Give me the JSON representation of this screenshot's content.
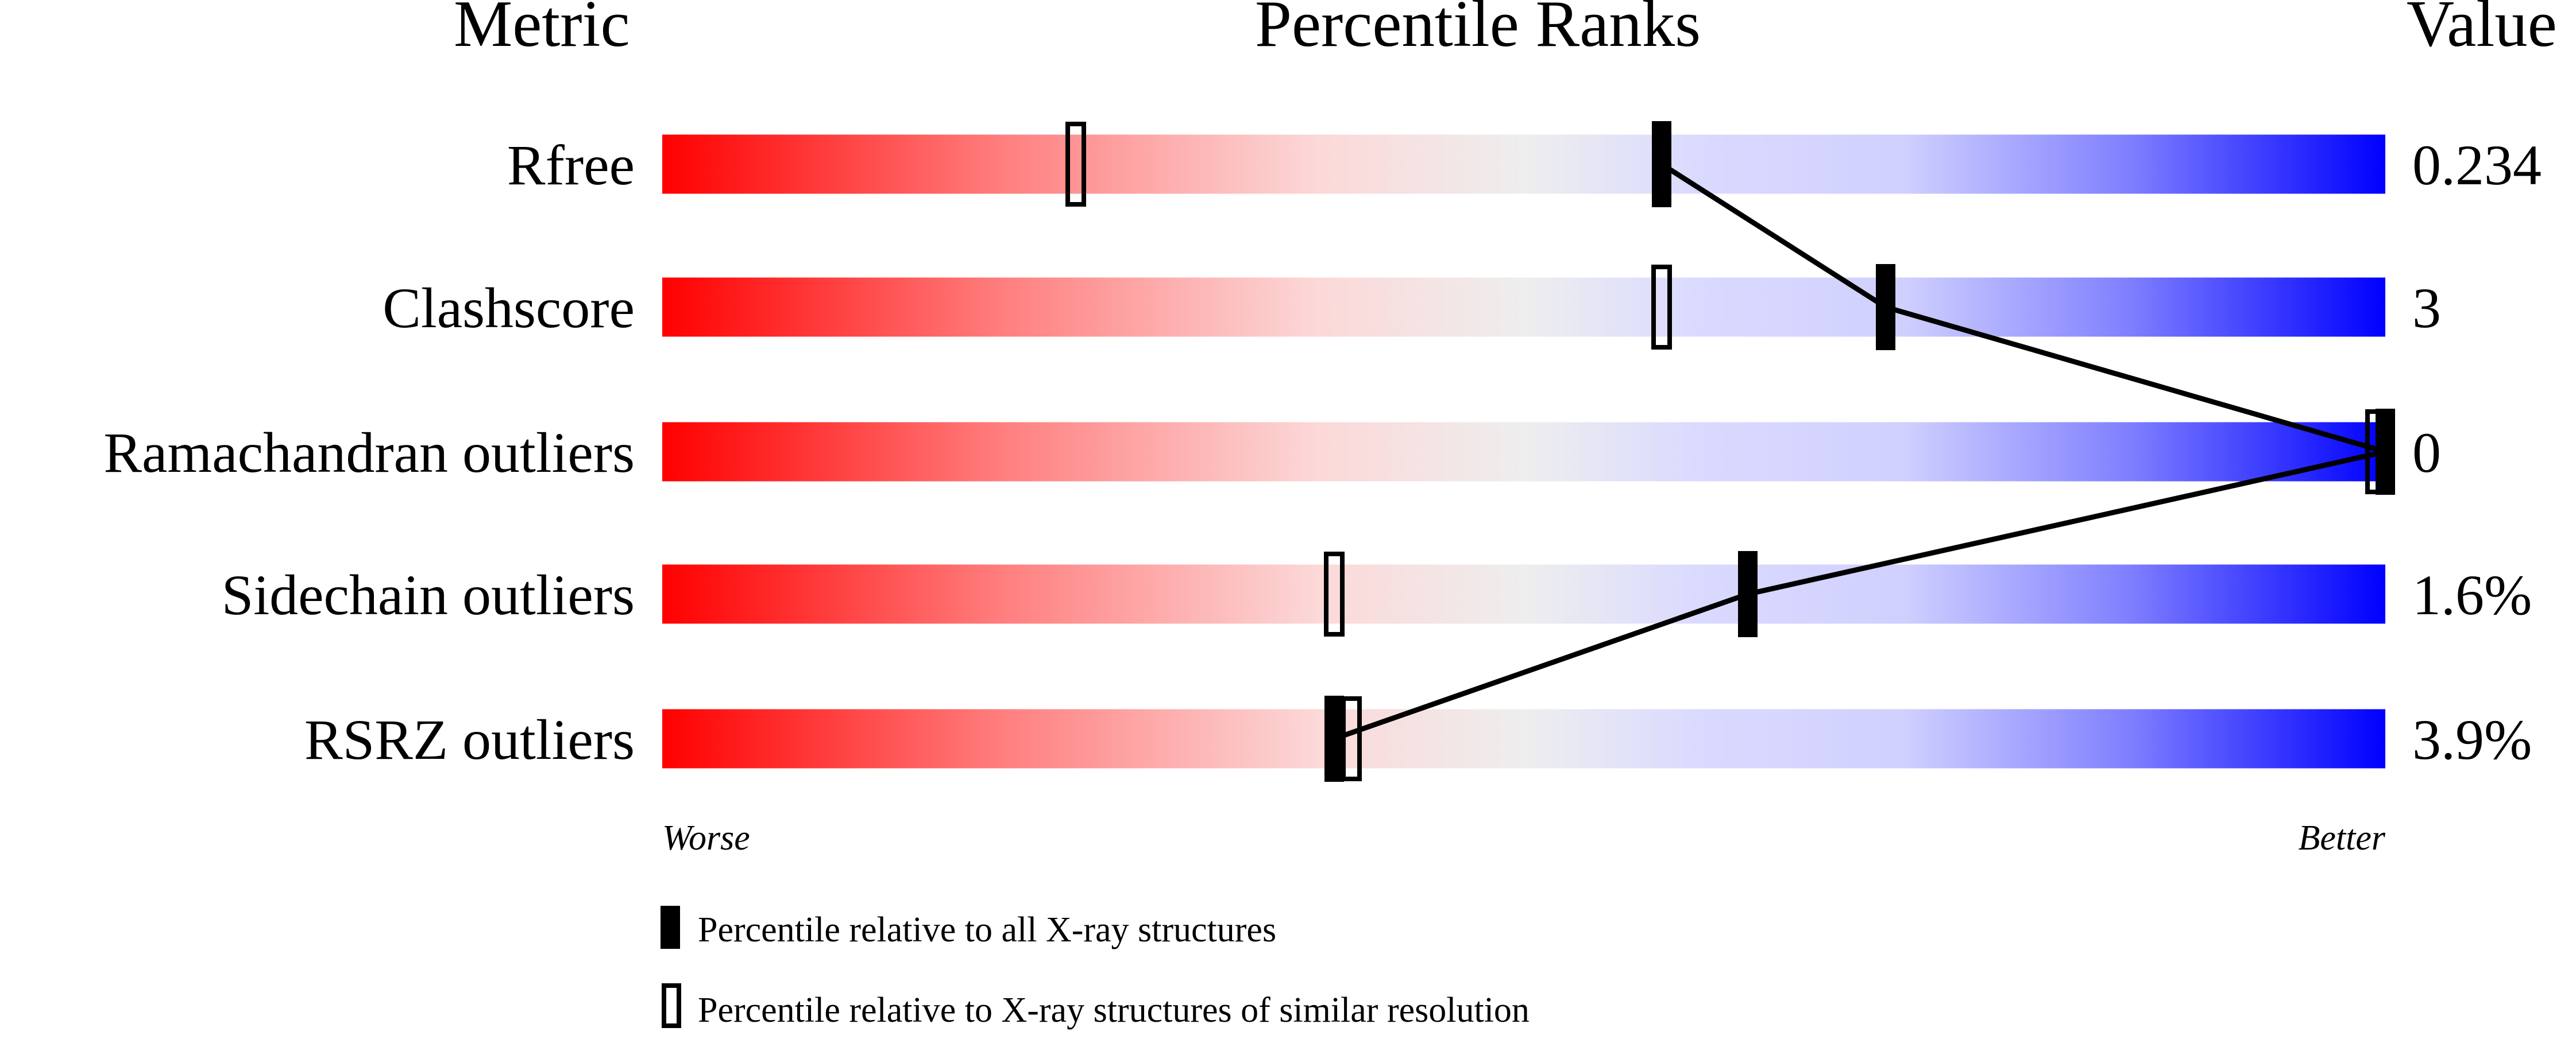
{
  "chart_data": {
    "type": "percentile-slider",
    "headers": {
      "metric": "Metric",
      "ranks": "Percentile Ranks",
      "value": "Value"
    },
    "axis": {
      "left": "Worse",
      "right": "Better",
      "range": [
        0,
        100
      ]
    },
    "metrics": [
      {
        "name": "Rfree",
        "value": "0.234",
        "percentile_all": 58,
        "percentile_similar": 24
      },
      {
        "name": "Clashscore",
        "value": "3",
        "percentile_all": 71,
        "percentile_similar": 58
      },
      {
        "name": "Ramachandran outliers",
        "value": "0",
        "percentile_all": 100,
        "percentile_similar": 100
      },
      {
        "name": "Sidechain outliers",
        "value": "1.6%",
        "percentile_all": 63,
        "percentile_similar": 39
      },
      {
        "name": "RSRZ outliers",
        "value": "3.9%",
        "percentile_all": 39,
        "percentile_similar": 40
      }
    ],
    "legend": [
      {
        "marker": "filled",
        "label": "Percentile relative to all X-ray structures"
      },
      {
        "marker": "open",
        "label": "Percentile relative to X-ray structures of similar resolution"
      }
    ],
    "colors": {
      "worse": "#ff0000",
      "middle": "#eeeeee",
      "better": "#0000ff",
      "marker": "#000000"
    }
  }
}
